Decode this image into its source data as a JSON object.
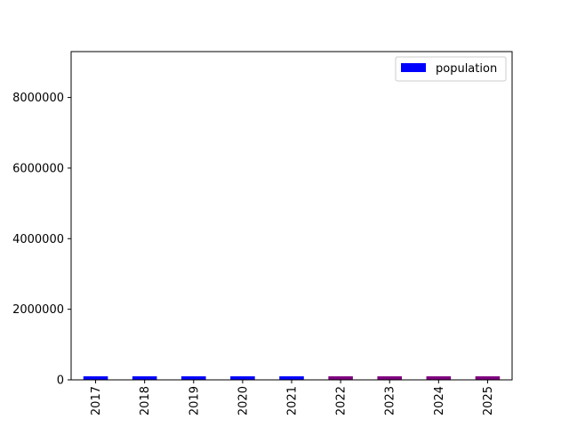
{
  "chart_data": {
    "type": "bar",
    "categories": [
      "2017",
      "2018",
      "2019",
      "2020",
      "2021",
      "2022",
      "2023",
      "2024",
      "2025"
    ],
    "series": [
      {
        "name": "population",
        "values": [
          100000,
          100000,
          100000,
          100000,
          100000,
          100000,
          100000,
          100000,
          100000
        ],
        "bar_colors": [
          "#0000ff",
          "#0000ff",
          "#0000ff",
          "#0000ff",
          "#0000ff",
          "#800080",
          "#800080",
          "#800080",
          "#800080"
        ]
      }
    ],
    "title": "",
    "xlabel": "",
    "ylabel": "",
    "ylim": [
      0,
      9300000
    ],
    "yticks": [
      0,
      2000000,
      4000000,
      6000000,
      8000000
    ],
    "ytick_labels": [
      "0",
      "2000000",
      "4000000",
      "6000000",
      "8000000"
    ],
    "legend": {
      "position": "top-right",
      "label": "population",
      "color": "#0000ff"
    },
    "grid": false
  }
}
